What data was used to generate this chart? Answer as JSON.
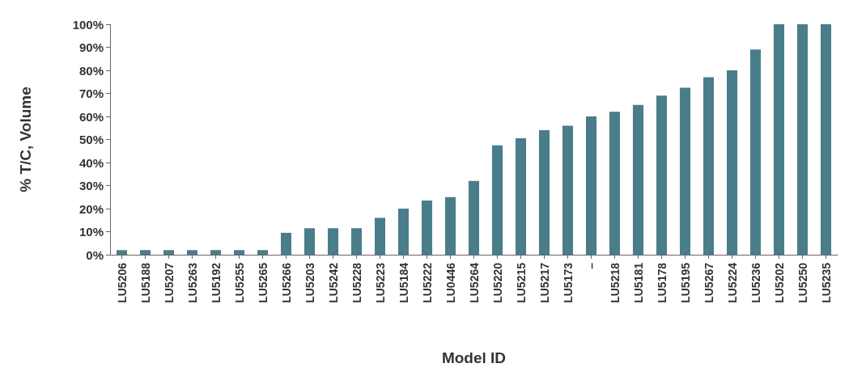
{
  "chart_data": {
    "type": "bar",
    "xlabel": "Model ID",
    "ylabel": "% T/C, Volume",
    "categories": [
      "LU5206",
      "LU5188",
      "LU5207",
      "LU5263",
      "LU5192",
      "LU5255",
      "LU5265",
      "LU5266",
      "LU5203",
      "LU5242",
      "LU5228",
      "LU5223",
      "LU5184",
      "LU5222",
      "LU0446",
      "LU5264",
      "LU5220",
      "LU5215",
      "LU5217",
      "LU5173",
      "–",
      "LU5218",
      "LU5181",
      "LU5178",
      "LU5195",
      "LU5267",
      "LU5224",
      "LU5236",
      "LU5202",
      "LU5250",
      "LU5235"
    ],
    "values": [
      2,
      2,
      2,
      2,
      2,
      2,
      2,
      9.5,
      11.5,
      11.5,
      11.5,
      16,
      20,
      23.5,
      25,
      32,
      47.5,
      50.5,
      54,
      56,
      60,
      62,
      65,
      69,
      72.5,
      77,
      80,
      89,
      100,
      100,
      100
    ],
    "color": "#4a7d8a",
    "ylim": [
      0,
      100
    ],
    "yticks": [
      {
        "value": 0,
        "label": "0%"
      },
      {
        "value": 10,
        "label": "10%"
      },
      {
        "value": 20,
        "label": "20%"
      },
      {
        "value": 30,
        "label": "30%"
      },
      {
        "value": 40,
        "label": "40%"
      },
      {
        "value": 50,
        "label": "50%"
      },
      {
        "value": 60,
        "label": "60%"
      },
      {
        "value": 70,
        "label": "70%"
      },
      {
        "value": 80,
        "label": "80%"
      },
      {
        "value": 90,
        "label": "90%"
      },
      {
        "value": 100,
        "label": "100%"
      }
    ],
    "grid": false
  }
}
